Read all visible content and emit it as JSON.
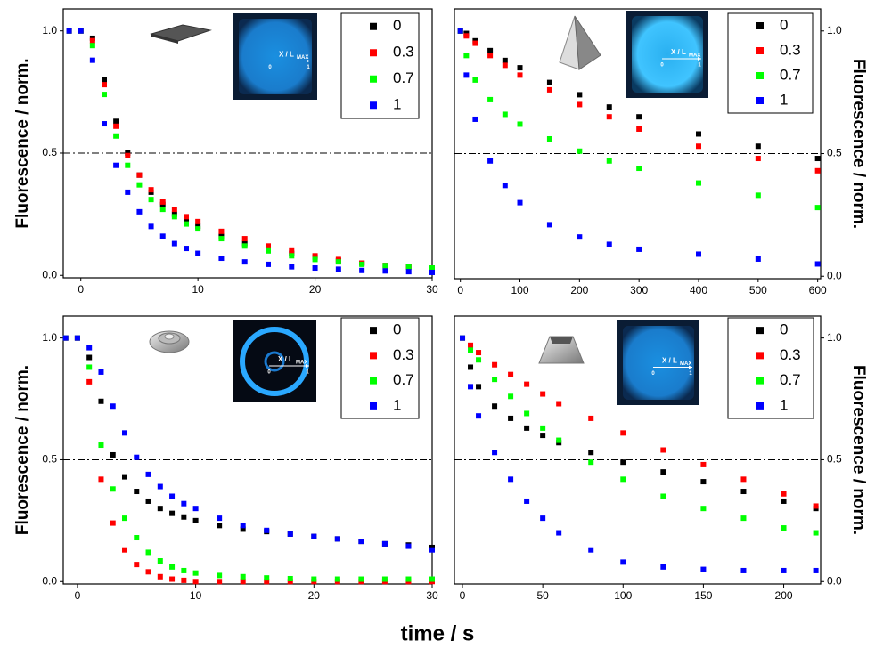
{
  "shared_xlabel": "time / s",
  "chart_data": [
    {
      "type": "scatter",
      "ylabel": "Fluorescence / norm.",
      "yaxis_side": "left",
      "hline": 0.5,
      "xlim": [
        -1.5,
        30
      ],
      "ylim": [
        -0.01,
        1.09
      ],
      "xticks": [
        0,
        10,
        20,
        30
      ],
      "yticks": [
        {
          "value": 0,
          "label": "0.0"
        },
        {
          "value": 0.5,
          "label": "0.5"
        },
        {
          "value": 1,
          "label": "1.0"
        }
      ],
      "inset_label": "X / L",
      "inset_label_sub": "MAX",
      "inset_ticks": [
        "0",
        "1"
      ],
      "x": [
        -1,
        0,
        1,
        2,
        3,
        4,
        5,
        6,
        7,
        8,
        9,
        10,
        12,
        14,
        16,
        18,
        20,
        22,
        24,
        26,
        28,
        30
      ],
      "series": [
        {
          "name": "0",
          "color": "#000000",
          "values": [
            1,
            1,
            0.97,
            0.8,
            0.63,
            0.5,
            0.41,
            0.34,
            0.29,
            0.25,
            0.22,
            0.2,
            0.16,
            0.13,
            0.11,
            0.09,
            0.075,
            0.06,
            0.05,
            0.04,
            0.035,
            0.03
          ]
        },
        {
          "name": "0.3",
          "color": "#ff0000",
          "values": [
            1,
            1,
            0.96,
            0.78,
            0.61,
            0.49,
            0.41,
            0.35,
            0.3,
            0.27,
            0.24,
            0.22,
            0.18,
            0.15,
            0.12,
            0.1,
            0.08,
            0.065,
            0.05,
            0.04,
            0.035,
            0.03
          ]
        },
        {
          "name": "0.7",
          "color": "#00ff00",
          "values": [
            1,
            1,
            0.94,
            0.74,
            0.57,
            0.45,
            0.37,
            0.31,
            0.27,
            0.24,
            0.21,
            0.19,
            0.15,
            0.12,
            0.1,
            0.08,
            0.065,
            0.055,
            0.045,
            0.04,
            0.035,
            0.03
          ]
        },
        {
          "name": "1",
          "color": "#0000ff",
          "values": [
            1,
            1,
            0.88,
            0.62,
            0.45,
            0.34,
            0.26,
            0.2,
            0.16,
            0.13,
            0.11,
            0.09,
            0.07,
            0.055,
            0.045,
            0.035,
            0.03,
            0.025,
            0.02,
            0.018,
            0.015,
            0.012
          ]
        }
      ]
    },
    {
      "type": "scatter",
      "ylabel": "Fluorescence / norm.",
      "yaxis_side": "right",
      "hline": 0.5,
      "xlim": [
        -10,
        605
      ],
      "ylim": [
        -0.01,
        1.09
      ],
      "xticks": [
        0,
        100,
        200,
        300,
        400,
        500,
        600
      ],
      "yticks": [
        {
          "value": 0,
          "label": "0.0"
        },
        {
          "value": 0.5,
          "label": "0.5"
        },
        {
          "value": 1,
          "label": "1.0"
        }
      ],
      "inset_label": "X / L",
      "inset_label_sub": "MAX",
      "inset_ticks": [
        "0",
        "1"
      ],
      "x": [
        0,
        10,
        25,
        50,
        75,
        100,
        150,
        200,
        250,
        300,
        400,
        500,
        600
      ],
      "series": [
        {
          "name": "0",
          "color": "#000000",
          "values": [
            1,
            0.99,
            0.96,
            0.92,
            0.88,
            0.85,
            0.79,
            0.74,
            0.69,
            0.65,
            0.58,
            0.53,
            0.48
          ]
        },
        {
          "name": "0.3",
          "color": "#ff0000",
          "values": [
            1,
            0.98,
            0.95,
            0.9,
            0.86,
            0.82,
            0.76,
            0.7,
            0.65,
            0.6,
            0.53,
            0.48,
            0.43
          ]
        },
        {
          "name": "0.7",
          "color": "#00ff00",
          "values": [
            1,
            0.9,
            0.8,
            0.72,
            0.66,
            0.62,
            0.56,
            0.51,
            0.47,
            0.44,
            0.38,
            0.33,
            0.28
          ]
        },
        {
          "name": "1",
          "color": "#0000ff",
          "values": [
            1,
            0.82,
            0.64,
            0.47,
            0.37,
            0.3,
            0.21,
            0.16,
            0.13,
            0.11,
            0.09,
            0.07,
            0.05
          ]
        }
      ]
    },
    {
      "type": "scatter",
      "ylabel": "Fluorescence / norm.",
      "yaxis_side": "left",
      "hline": 0.5,
      "xlim": [
        -1.2,
        30
      ],
      "ylim": [
        -0.01,
        1.09
      ],
      "xticks": [
        0,
        10,
        20,
        30
      ],
      "yticks": [
        {
          "value": 0,
          "label": "0.0"
        },
        {
          "value": 0.5,
          "label": "0.5"
        },
        {
          "value": 1,
          "label": "1.0"
        }
      ],
      "inset_label": "X / L",
      "inset_label_sub": "MAX",
      "inset_ticks": [
        "0",
        "1"
      ],
      "x": [
        -1,
        0,
        1,
        2,
        3,
        4,
        5,
        6,
        7,
        8,
        9,
        10,
        12,
        14,
        16,
        18,
        20,
        22,
        24,
        26,
        28,
        30
      ],
      "series": [
        {
          "name": "0",
          "color": "#000000",
          "values": [
            1,
            1,
            0.92,
            0.74,
            0.52,
            0.43,
            0.37,
            0.33,
            0.3,
            0.28,
            0.265,
            0.25,
            0.23,
            0.215,
            0.205,
            0.195,
            0.185,
            0.175,
            0.165,
            0.155,
            0.15,
            0.14
          ]
        },
        {
          "name": "0.3",
          "color": "#ff0000",
          "values": [
            1,
            1,
            0.82,
            0.42,
            0.24,
            0.13,
            0.07,
            0.04,
            0.02,
            0.01,
            0.005,
            0,
            0,
            0,
            0,
            0,
            0,
            0,
            0,
            0,
            0,
            0
          ]
        },
        {
          "name": "0.7",
          "color": "#00ff00",
          "values": [
            1,
            1,
            0.88,
            0.56,
            0.38,
            0.26,
            0.18,
            0.12,
            0.085,
            0.06,
            0.045,
            0.035,
            0.025,
            0.02,
            0.015,
            0.012,
            0.01,
            0.01,
            0.01,
            0.01,
            0.01,
            0.01
          ]
        },
        {
          "name": "1",
          "color": "#0000ff",
          "values": [
            1,
            1,
            0.96,
            0.86,
            0.72,
            0.61,
            0.51,
            0.44,
            0.39,
            0.35,
            0.32,
            0.3,
            0.26,
            0.23,
            0.21,
            0.195,
            0.185,
            0.175,
            0.165,
            0.155,
            0.145,
            0.13
          ]
        }
      ]
    },
    {
      "type": "scatter",
      "ylabel": "Fluorescence / norm.",
      "yaxis_side": "right",
      "hline": 0.5,
      "xlim": [
        -5,
        223
      ],
      "ylim": [
        -0.01,
        1.09
      ],
      "xticks": [
        0,
        50,
        100,
        150,
        200
      ],
      "yticks": [
        {
          "value": 0,
          "label": "0.0"
        },
        {
          "value": 0.5,
          "label": "0.5"
        },
        {
          "value": 1,
          "label": "1.0"
        }
      ],
      "inset_label": "X / L",
      "inset_label_sub": "MAX",
      "inset_ticks": [
        "0",
        "1"
      ],
      "x": [
        0,
        5,
        10,
        20,
        30,
        40,
        50,
        60,
        80,
        100,
        125,
        150,
        175,
        200,
        220
      ],
      "series": [
        {
          "name": "0",
          "color": "#000000",
          "values": [
            1,
            0.88,
            0.8,
            0.72,
            0.67,
            0.63,
            0.6,
            0.57,
            0.53,
            0.49,
            0.45,
            0.41,
            0.37,
            0.33,
            0.3
          ]
        },
        {
          "name": "0.3",
          "color": "#ff0000",
          "values": [
            1,
            0.97,
            0.94,
            0.89,
            0.85,
            0.81,
            0.77,
            0.73,
            0.67,
            0.61,
            0.54,
            0.48,
            0.42,
            0.36,
            0.31
          ]
        },
        {
          "name": "0.7",
          "color": "#00ff00",
          "values": [
            1,
            0.95,
            0.91,
            0.83,
            0.76,
            0.69,
            0.63,
            0.58,
            0.49,
            0.42,
            0.35,
            0.3,
            0.26,
            0.22,
            0.2
          ]
        },
        {
          "name": "1",
          "color": "#0000ff",
          "values": [
            1,
            0.8,
            0.68,
            0.53,
            0.42,
            0.33,
            0.26,
            0.2,
            0.13,
            0.08,
            0.06,
            0.05,
            0.045,
            0.045,
            0.045
          ]
        }
      ]
    }
  ]
}
